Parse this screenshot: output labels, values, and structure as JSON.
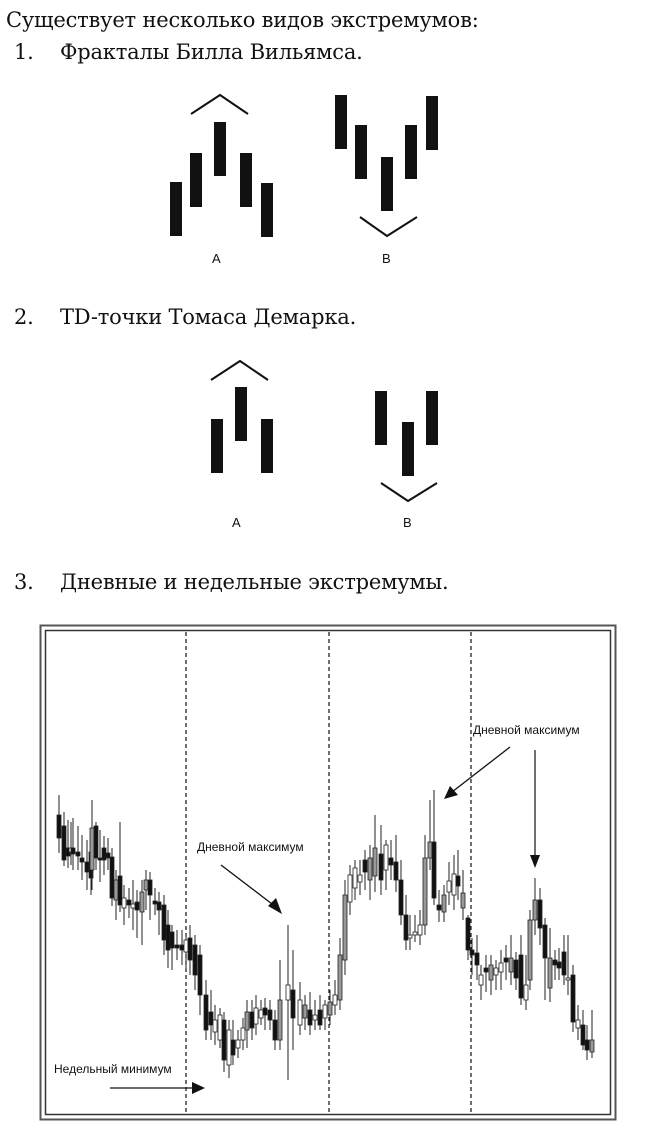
{
  "intro": "Существует несколько видов экстремумов:",
  "items": [
    {
      "num": "1.",
      "title": "Фракталы Билла Вильямса."
    },
    {
      "num": "2.",
      "title": "TD-точки Томаса Демарка."
    },
    {
      "num": "3.",
      "title": "Дневные и недельные экстремумы."
    }
  ],
  "fractals": {
    "label_a": "A",
    "label_b": "B"
  },
  "td_points": {
    "label_a": "A",
    "label_b": "B"
  },
  "chart": {
    "annotation_daily_max_1": "Дневной максимум",
    "annotation_daily_max_2": "Дневной максимум",
    "annotation_weekly_min": "Недельный минимум"
  },
  "chart_data": {
    "type": "candlestick",
    "title": "",
    "xlabel": "",
    "ylabel": "",
    "grid": false,
    "week_separators_count": 3,
    "annotations": [
      "Дневной максимум",
      "Дневной максимум",
      "Недельный минимум"
    ],
    "description": "Price candlestick chart spanning ~4 weeks separated by dashed vertical lines; downtrend in week 1, weekly minimum near start of week 2, rally in week 3 with daily maximum, decline in week 4 with a second daily maximum spike."
  }
}
